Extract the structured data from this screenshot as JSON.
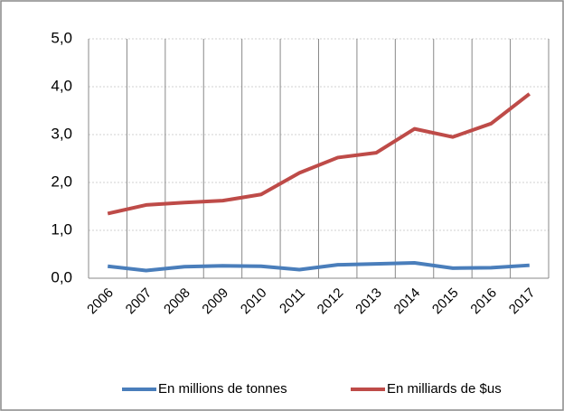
{
  "chart_data": {
    "type": "line",
    "categories": [
      "2006",
      "2007",
      "2008",
      "2009",
      "2010",
      "2011",
      "2012",
      "2013",
      "2014",
      "2015",
      "2016",
      "2017"
    ],
    "series": [
      {
        "name": "En millions de tonnes",
        "color": "#4a7ebb",
        "values": [
          0.25,
          0.16,
          0.24,
          0.26,
          0.25,
          0.18,
          0.28,
          0.3,
          0.32,
          0.21,
          0.22,
          0.27
        ]
      },
      {
        "name": "En milliards de $us",
        "color": "#be4b48",
        "values": [
          1.35,
          1.53,
          1.58,
          1.62,
          1.75,
          2.2,
          2.52,
          2.62,
          3.12,
          2.95,
          3.23,
          3.85
        ]
      }
    ],
    "ylim": [
      0,
      5
    ],
    "yticks": [
      {
        "value": 0,
        "label": "0,0"
      },
      {
        "value": 1,
        "label": "1,0"
      },
      {
        "value": 2,
        "label": "2,0"
      },
      {
        "value": 3,
        "label": "3,0"
      },
      {
        "value": 4,
        "label": "4,0"
      },
      {
        "value": 5,
        "label": "5,0"
      }
    ],
    "grid": true,
    "legend": "bottom"
  }
}
